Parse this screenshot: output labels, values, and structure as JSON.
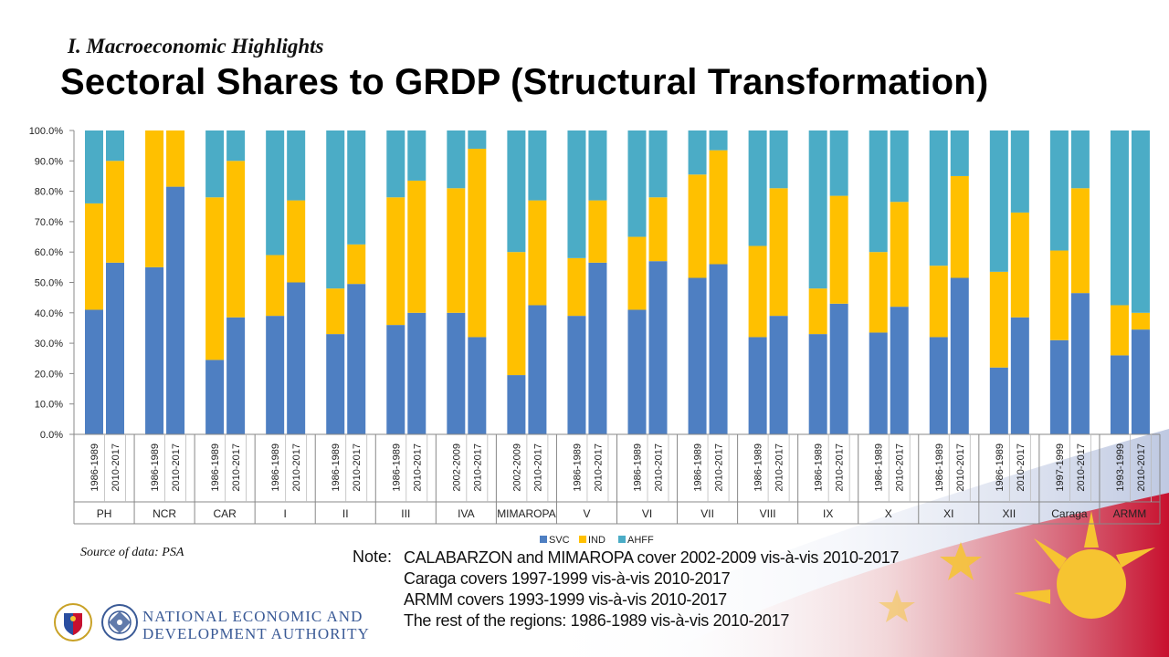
{
  "header": {
    "kicker": "I. Macroeconomic Highlights",
    "title": "Sectoral Shares to GRDP (Structural Transformation)"
  },
  "chart_data": {
    "type": "bar",
    "stacked": true,
    "ylim": [
      0,
      100
    ],
    "y_ticks": [
      "0.0%",
      "10.0%",
      "20.0%",
      "30.0%",
      "40.0%",
      "50.0%",
      "60.0%",
      "70.0%",
      "80.0%",
      "90.0%",
      "100.0%"
    ],
    "grid": false,
    "legend_position": "bottom",
    "colors": {
      "SVC": "#4e7fc2",
      "IND": "#ffc000",
      "AHFF": "#4bacc6"
    },
    "groups": [
      {
        "region": "PH",
        "periods": [
          "1986-1989",
          "2010-2017"
        ]
      },
      {
        "region": "NCR",
        "periods": [
          "1986-1989",
          "2010-2017"
        ]
      },
      {
        "region": "CAR",
        "periods": [
          "1986-1989",
          "2010-2017"
        ]
      },
      {
        "region": "I",
        "periods": [
          "1986-1989",
          "2010-2017"
        ]
      },
      {
        "region": "II",
        "periods": [
          "1986-1989",
          "2010-2017"
        ]
      },
      {
        "region": "III",
        "periods": [
          "1986-1989",
          "2010-2017"
        ]
      },
      {
        "region": "IVA",
        "periods": [
          "2002-2009",
          "2010-2017"
        ]
      },
      {
        "region": "MIMAROPA",
        "periods": [
          "2002-2009",
          "2010-2017"
        ]
      },
      {
        "region": "V",
        "periods": [
          "1986-1989",
          "2010-2017"
        ]
      },
      {
        "region": "VI",
        "periods": [
          "1986-1989",
          "2010-2017"
        ]
      },
      {
        "region": "VII",
        "periods": [
          "1986-1989",
          "2010-2017"
        ]
      },
      {
        "region": "VIII",
        "periods": [
          "1986-1989",
          "2010-2017"
        ]
      },
      {
        "region": "IX",
        "periods": [
          "1986-1989",
          "2010-2017"
        ]
      },
      {
        "region": "X",
        "periods": [
          "1986-1989",
          "2010-2017"
        ]
      },
      {
        "region": "XI",
        "periods": [
          "1986-1989",
          "2010-2017"
        ]
      },
      {
        "region": "XII",
        "periods": [
          "1986-1989",
          "2010-2017"
        ]
      },
      {
        "region": "Caraga",
        "periods": [
          "1997-1999",
          "2010-2017"
        ]
      },
      {
        "region": "ARMM",
        "periods": [
          "1993-1999",
          "2010-2017"
        ]
      }
    ],
    "series": [
      {
        "name": "SVC",
        "values": [
          41,
          56.5,
          55,
          81.5,
          24.5,
          38.5,
          39,
          50,
          33,
          49.5,
          36,
          40,
          40,
          32,
          19.5,
          42.5,
          39,
          56.5,
          41,
          57,
          51.5,
          56,
          32,
          39,
          33,
          43,
          33.5,
          42,
          32,
          51.5,
          22,
          38.5,
          31,
          46.5,
          26,
          34.5
        ]
      },
      {
        "name": "IND",
        "values": [
          35,
          33.5,
          45,
          18.5,
          53.5,
          51.5,
          20,
          27,
          15,
          13,
          42,
          43.5,
          41,
          62,
          40.5,
          34.5,
          19,
          20.5,
          24,
          21,
          34,
          37.5,
          30,
          42,
          15,
          35.5,
          26.5,
          34.5,
          23.5,
          33.5,
          31.5,
          34.5,
          29.5,
          34.5,
          16.5,
          5.5
        ]
      },
      {
        "name": "AHFF",
        "values": [
          24,
          10,
          0,
          0,
          22,
          10,
          41,
          23,
          52,
          37.5,
          22,
          16.5,
          19,
          6,
          40,
          23,
          42,
          23,
          35,
          22,
          14.5,
          6.5,
          38,
          19,
          52,
          21.5,
          40,
          23.5,
          44.5,
          15,
          46.5,
          27,
          39.5,
          19,
          57.5,
          60
        ]
      }
    ]
  },
  "source": "Source of data: PSA",
  "note": {
    "label": "Note:",
    "lines": [
      "CALABARZON and MIMAROPA cover 2002-2009 vis-à-vis 2010-2017",
      "Caraga covers 1997-1999 vis-à-vis 2010-2017",
      "ARMM covers 1993-1999 vis-à-vis 2010-2017",
      "The rest of the regions: 1986-1989 vis-à-vis 2010-2017"
    ]
  },
  "footer": {
    "agency_line1": "NATIONAL ECONOMIC AND",
    "agency_line2": "DEVELOPMENT AUTHORITY"
  }
}
